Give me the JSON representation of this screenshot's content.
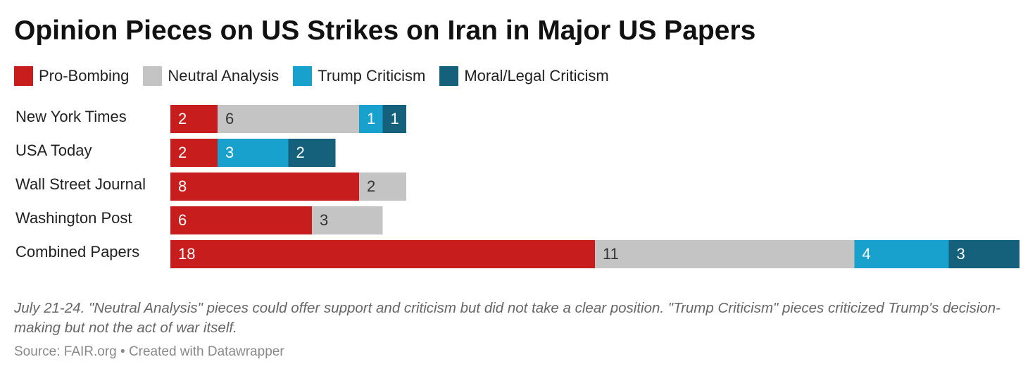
{
  "title": "Opinion Pieces on US Strikes on Iran in Major US Papers",
  "notes": "July 21-24. \"Neutral Analysis\" pieces could offer support and criticism but did not take a clear position. \"Trump Criticism\" pieces criticized Trump's decision-making but not the act of war itself.",
  "source": "Source: FAIR.org • Created with Datawrapper",
  "chart_data": {
    "type": "bar",
    "orientation": "horizontal",
    "stacked": true,
    "title": "Opinion Pieces on US Strikes on Iran in Major US Papers",
    "categories": [
      "New York Times",
      "USA Today",
      "Wall Street Journal",
      "Washington Post",
      "Combined Papers"
    ],
    "series": [
      {
        "name": "Pro-Bombing",
        "color": "#c71e1d",
        "values": [
          2,
          2,
          8,
          6,
          18
        ]
      },
      {
        "name": "Neutral Analysis",
        "color": "#c4c4c4",
        "values": [
          6,
          0,
          2,
          3,
          11
        ]
      },
      {
        "name": "Trump Criticism",
        "color": "#18a1cd",
        "values": [
          1,
          3,
          0,
          0,
          4
        ]
      },
      {
        "name": "Moral/Legal Criticism",
        "color": "#15607a",
        "values": [
          1,
          2,
          0,
          0,
          3
        ]
      }
    ],
    "xlim": [
      0,
      36
    ],
    "legend_position": "top-left",
    "grid": false
  }
}
